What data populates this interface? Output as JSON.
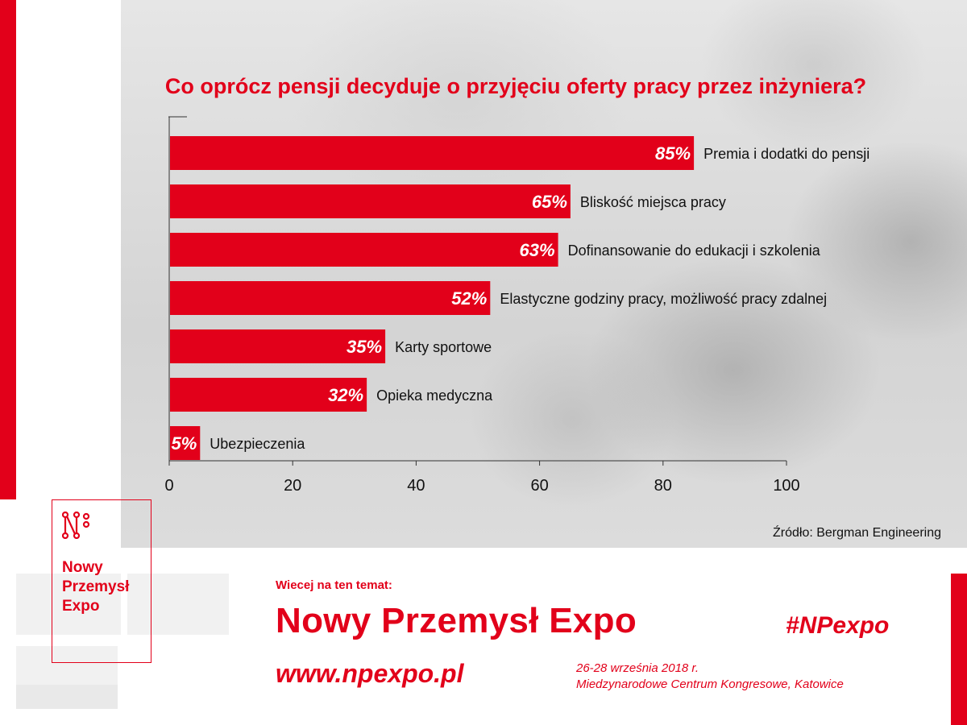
{
  "colors": {
    "brand": "#e2001a",
    "axis": "#333333",
    "text": "#111111"
  },
  "chart_data": {
    "type": "bar",
    "orientation": "horizontal",
    "title": "Co oprócz pensji decyduje o przyjęciu oferty pracy przez inżyniera?",
    "categories": [
      "Premia i dodatki do pensji",
      "Bliskość miejsca pracy",
      "Dofinansowanie do edukacji i szkolenia",
      "Elastyczne godziny pracy, możliwość pracy zdalnej",
      "Karty sportowe",
      "Opieka medyczna",
      "Ubezpieczenia"
    ],
    "values": [
      85,
      65,
      63,
      52,
      35,
      32,
      5
    ],
    "value_labels": [
      "85%",
      "65%",
      "63%",
      "52%",
      "35%",
      "32%",
      "5%"
    ],
    "xlim": [
      0,
      100
    ],
    "xticks": [
      0,
      20,
      40,
      60,
      80,
      100
    ],
    "xtick_labels": [
      "0",
      "20",
      "40",
      "60",
      "80",
      "100"
    ],
    "grid": false,
    "source": "Źródło: Bergman Engineering"
  },
  "logo": {
    "lines": [
      "Nowy",
      "Przemysł",
      "Expo"
    ],
    "mark_icon": "np-logo-icon"
  },
  "footer": {
    "more_label": "Wiecej na ten temat:",
    "event_name": "Nowy Przemysł Expo",
    "hashtag": "#NPexpo",
    "url": "www.npexpo.pl",
    "dates": "26-28 września 2018 r.",
    "venue": "Miedzynarodowe Centrum Kongresowe, Katowice"
  }
}
